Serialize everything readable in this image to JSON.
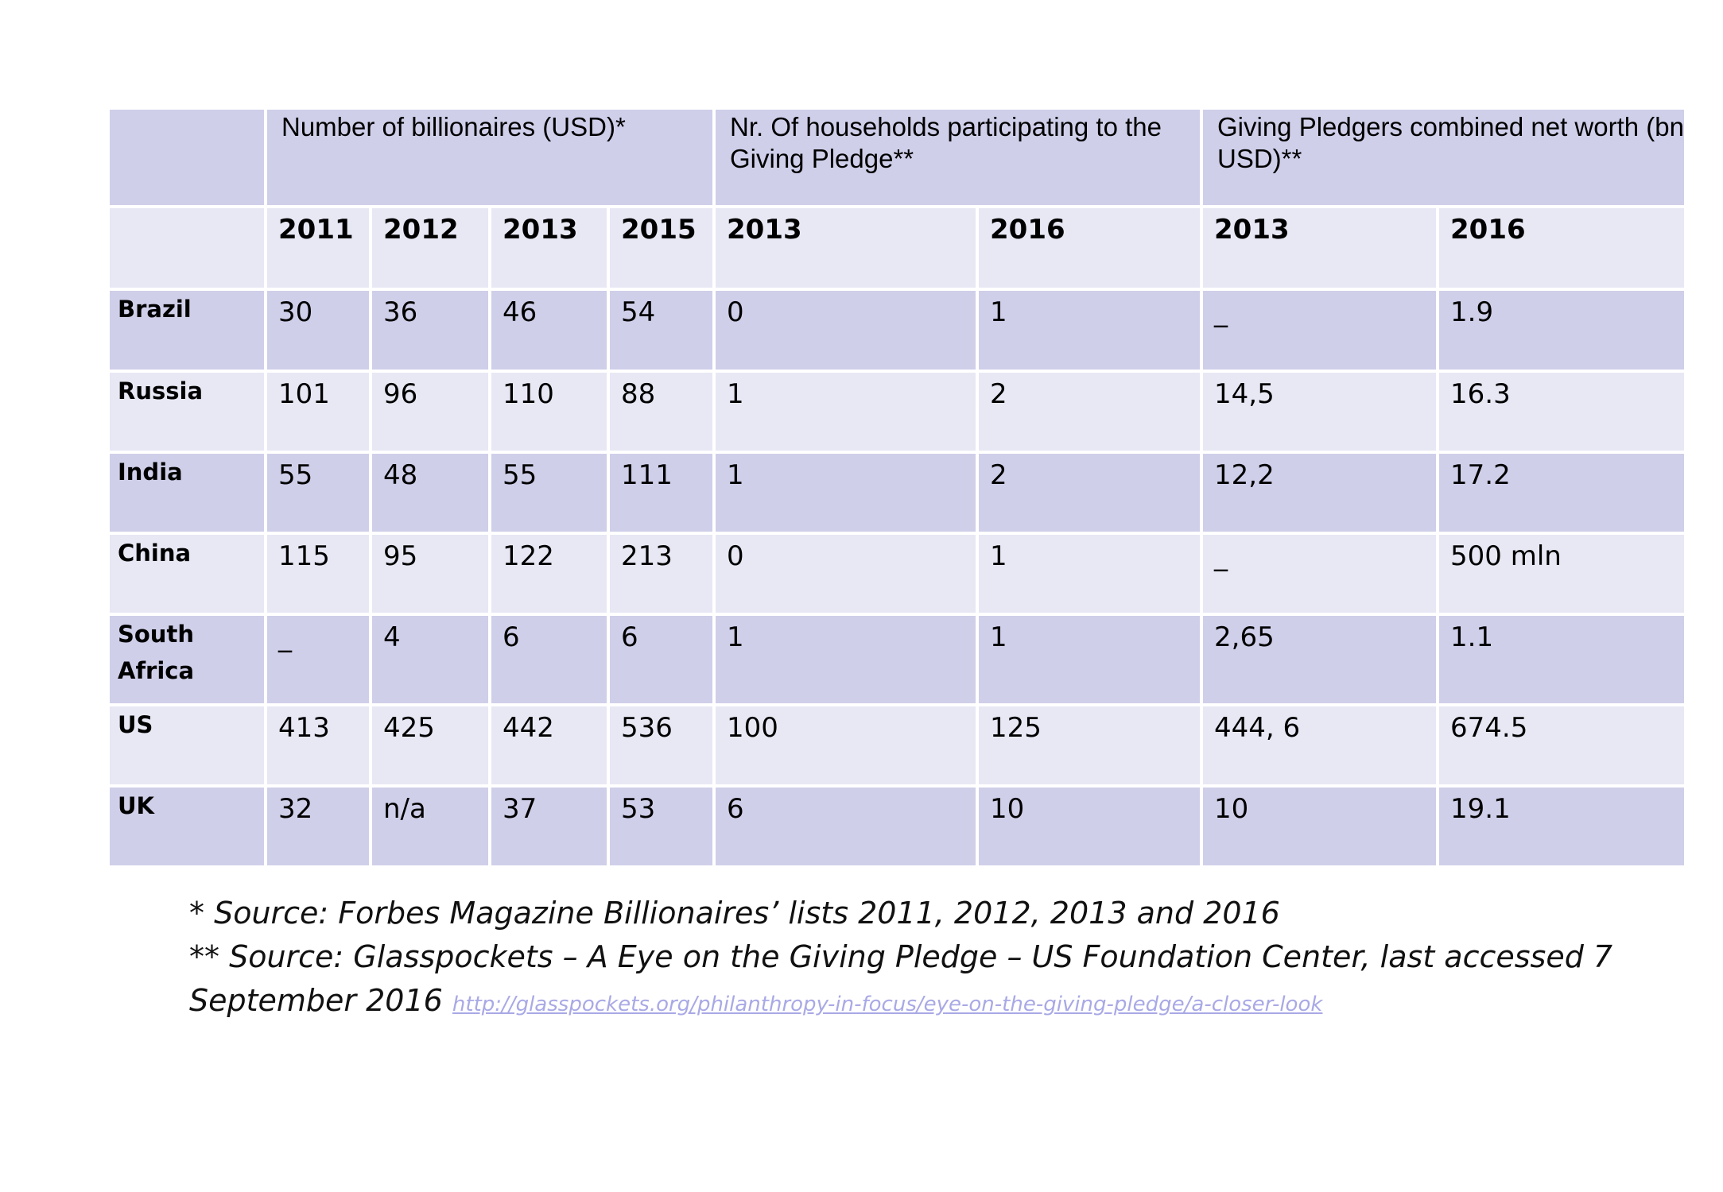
{
  "table": {
    "group_headers": [
      "Number of billionaires (USD)*",
      "Nr. Of households participating to the Giving Pledge**",
      "Giving Pledgers combined net worth (bn USD)**"
    ],
    "years": [
      "2011",
      "2012",
      "2013",
      "2015",
      "2013",
      "2016",
      "2013",
      "2016"
    ],
    "rows": [
      {
        "label": "Brazil",
        "values": [
          "30",
          "36",
          "46",
          "54",
          "0",
          "1",
          "_",
          "1.9"
        ]
      },
      {
        "label": "Russia",
        "values": [
          "101",
          "96",
          "110",
          "88",
          "1",
          "2",
          "14,5",
          "16.3"
        ]
      },
      {
        "label": "India",
        "values": [
          "55",
          "48",
          "55",
          "111",
          "1",
          "2",
          "12,2",
          "17.2"
        ]
      },
      {
        "label": "China",
        "values": [
          "115",
          "95",
          "122",
          "213",
          "0",
          "1",
          "_",
          "500 mln"
        ]
      },
      {
        "label": "South Africa",
        "values": [
          "_",
          "4",
          "6",
          "6",
          "1",
          "1",
          "2,65",
          "1.1"
        ]
      },
      {
        "label": "US",
        "values": [
          "413",
          "425",
          "442",
          "536",
          "100",
          "125",
          "444, 6",
          "674.5"
        ]
      },
      {
        "label": "UK",
        "values": [
          "32",
          "n/a",
          "37",
          "53",
          "6",
          "10",
          "10",
          "19.1"
        ]
      }
    ]
  },
  "notes": {
    "note1": "*  Source: Forbes Magazine Billionaires’ lists 2011, 2012, 2013 and 2016",
    "note2_line1": "** Source: Glasspockets – A Eye on the Giving Pledge – US Foundation Center, last accessed 7",
    "note2_line2": "September 2016",
    "link_text": "http://glasspockets.org/philanthropy-in-focus/eye-on-the-giving-pledge/a-closer-look"
  },
  "colors": {
    "dark_band": "#cfcfea",
    "light_band": "#e7e8f4",
    "link": "#a9a9e6"
  }
}
